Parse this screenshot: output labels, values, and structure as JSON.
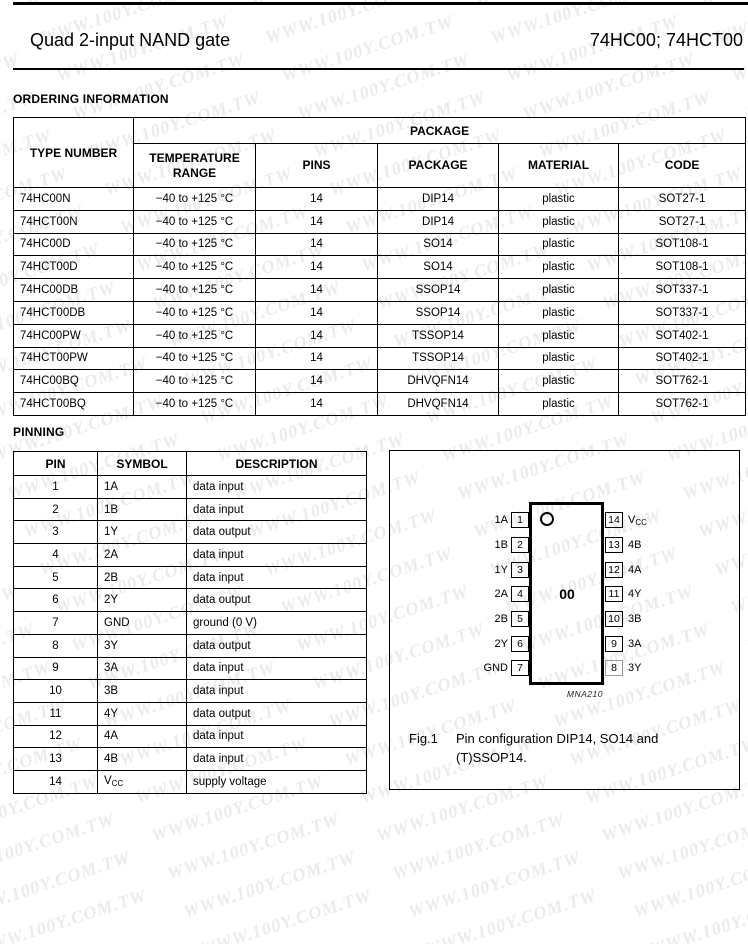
{
  "watermark": {
    "text": "WWW.100Y.COM.TW",
    "color": "#ebebee"
  },
  "header": {
    "title": "Quad 2-input NAND gate",
    "part_numbers": "74HC00; 74HCT00"
  },
  "ordering": {
    "heading": "ORDERING INFORMATION",
    "type_number_header": "TYPE NUMBER",
    "package_group_header": "PACKAGE",
    "columns": [
      "TEMPERATURE RANGE",
      "PINS",
      "PACKAGE",
      "MATERIAL",
      "CODE"
    ],
    "rows": [
      {
        "type": "74HC00N",
        "temp": "−40 to +125 °C",
        "pins": "14",
        "package": "DIP14",
        "material": "plastic",
        "code": "SOT27-1"
      },
      {
        "type": "74HCT00N",
        "temp": "−40 to +125 °C",
        "pins": "14",
        "package": "DIP14",
        "material": "plastic",
        "code": "SOT27-1"
      },
      {
        "type": "74HC00D",
        "temp": "−40 to +125 °C",
        "pins": "14",
        "package": "SO14",
        "material": "plastic",
        "code": "SOT108-1"
      },
      {
        "type": "74HCT00D",
        "temp": "−40 to +125 °C",
        "pins": "14",
        "package": "SO14",
        "material": "plastic",
        "code": "SOT108-1"
      },
      {
        "type": "74HC00DB",
        "temp": "−40 to +125 °C",
        "pins": "14",
        "package": "SSOP14",
        "material": "plastic",
        "code": "SOT337-1"
      },
      {
        "type": "74HCT00DB",
        "temp": "−40 to +125 °C",
        "pins": "14",
        "package": "SSOP14",
        "material": "plastic",
        "code": "SOT337-1"
      },
      {
        "type": "74HC00PW",
        "temp": "−40 to +125 °C",
        "pins": "14",
        "package": "TSSOP14",
        "material": "plastic",
        "code": "SOT402-1"
      },
      {
        "type": "74HCT00PW",
        "temp": "−40 to +125 °C",
        "pins": "14",
        "package": "TSSOP14",
        "material": "plastic",
        "code": "SOT402-1"
      },
      {
        "type": "74HC00BQ",
        "temp": "−40 to +125 °C",
        "pins": "14",
        "package": "DHVQFN14",
        "material": "plastic",
        "code": "SOT762-1"
      },
      {
        "type": "74HCT00BQ",
        "temp": "−40 to +125 °C",
        "pins": "14",
        "package": "DHVQFN14",
        "material": "plastic",
        "code": "SOT762-1"
      }
    ]
  },
  "pinning": {
    "heading": "PINNING",
    "columns": [
      "PIN",
      "SYMBOL",
      "DESCRIPTION"
    ],
    "rows": [
      {
        "pin": "1",
        "symbol": "1A",
        "description": "data input"
      },
      {
        "pin": "2",
        "symbol": "1B",
        "description": "data input"
      },
      {
        "pin": "3",
        "symbol": "1Y",
        "description": "data output"
      },
      {
        "pin": "4",
        "symbol": "2A",
        "description": "data input"
      },
      {
        "pin": "5",
        "symbol": "2B",
        "description": "data input"
      },
      {
        "pin": "6",
        "symbol": "2Y",
        "description": "data output"
      },
      {
        "pin": "7",
        "symbol": "GND",
        "description": "ground (0 V)"
      },
      {
        "pin": "8",
        "symbol": "3Y",
        "description": "data output"
      },
      {
        "pin": "9",
        "symbol": "3A",
        "description": "data input"
      },
      {
        "pin": "10",
        "symbol": "3B",
        "description": "data input"
      },
      {
        "pin": "11",
        "symbol": "4Y",
        "description": "data output"
      },
      {
        "pin": "12",
        "symbol": "4A",
        "description": "data input"
      },
      {
        "pin": "13",
        "symbol": "4B",
        "description": "data input"
      },
      {
        "pin": "14",
        "symbol": "V",
        "symbol_sub": "CC",
        "description": "supply voltage"
      }
    ]
  },
  "figure": {
    "ic_label": "00",
    "drawing_code": "MNA210",
    "fig_label": "Fig.1",
    "caption_line1": "Pin configuration DIP14, SO14 and",
    "caption_line2": "(T)SSOP14.",
    "left_pins": [
      {
        "num": "1",
        "label": "1A"
      },
      {
        "num": "2",
        "label": "1B"
      },
      {
        "num": "3",
        "label": "1Y"
      },
      {
        "num": "4",
        "label": "2A"
      },
      {
        "num": "5",
        "label": "2B"
      },
      {
        "num": "6",
        "label": "2Y"
      },
      {
        "num": "7",
        "label": "GND"
      }
    ],
    "right_pins": [
      {
        "num": "14",
        "label": "V",
        "sub": "CC"
      },
      {
        "num": "13",
        "label": "4B"
      },
      {
        "num": "12",
        "label": "4A"
      },
      {
        "num": "11",
        "label": "4Y"
      },
      {
        "num": "10",
        "label": "3B"
      },
      {
        "num": "9",
        "label": "3A"
      },
      {
        "num": "8",
        "label": "3Y",
        "dim": true
      }
    ]
  }
}
